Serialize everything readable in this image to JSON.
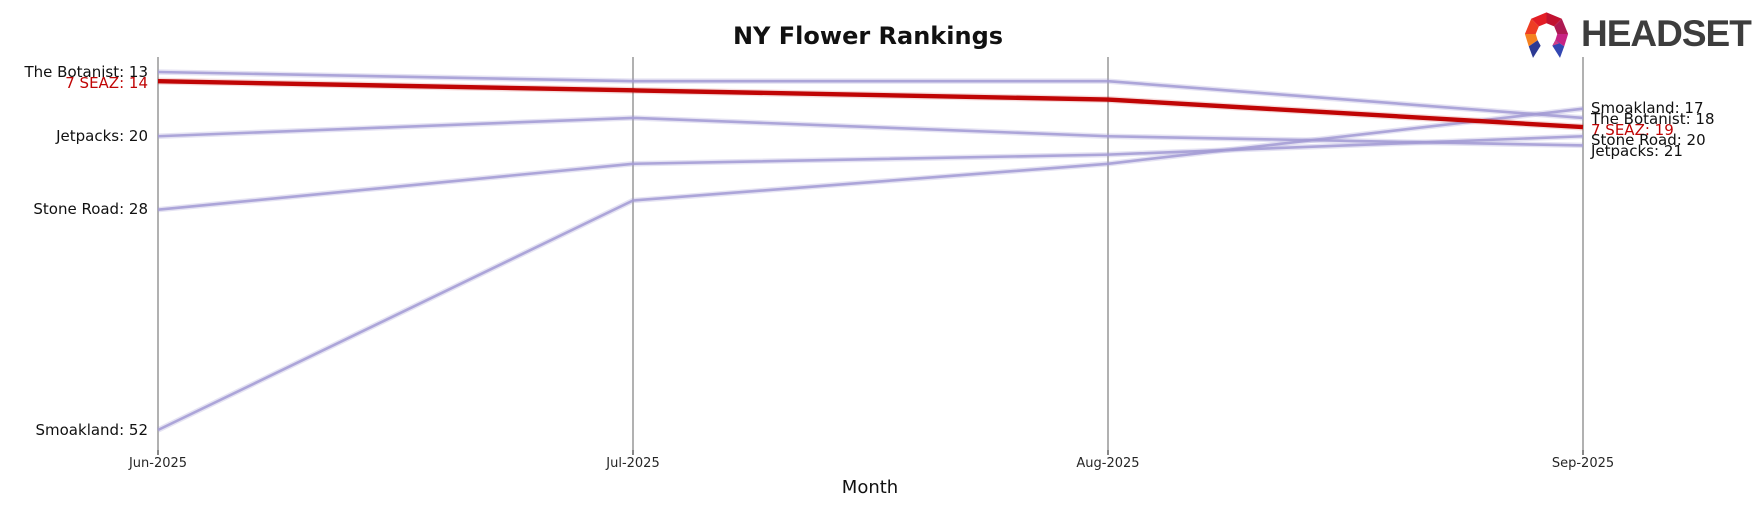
{
  "title": "NY Flower Rankings",
  "xlabel": "Month",
  "logo": {
    "text": "HEADSET",
    "text_color": "#3d3d3d",
    "icon_colors": [
      "#f58220",
      "#ee3d23",
      "#e31d25",
      "#c11230",
      "#ad1a52",
      "#c72384",
      "#2c3a94",
      "#3347b2",
      "#d23f88"
    ]
  },
  "colors": {
    "line_default": "#a29ad4",
    "line_highlight": "#c00505",
    "axis_line": "#b1b1b1",
    "tick_mark": "#555555",
    "label_text": "#111111",
    "highlight_label_text": "#c00505"
  },
  "chart_data": {
    "type": "line",
    "subtype": "bump-ranking-chart",
    "title": "NY Flower Rankings",
    "xlabel": "Month",
    "ylabel": "",
    "x": [
      "Jun-2025",
      "Jul-2025",
      "Aug-2025",
      "Sep-2025"
    ],
    "y_inverted": true,
    "ylim": [
      13,
      52
    ],
    "grid": "vertical-month-axes-only",
    "legend": "none (direct line labels at both ends)",
    "series": [
      {
        "name": "The Botanist",
        "values": [
          13,
          14,
          14,
          18
        ],
        "highlight": false,
        "left_label": "The Botanist: 13",
        "right_label": "The Botanist: 18"
      },
      {
        "name": "7 SEAZ",
        "values": [
          14,
          15,
          16,
          19
        ],
        "highlight": true,
        "left_label": "7 SEAZ: 14",
        "right_label": "7 SEAZ: 19"
      },
      {
        "name": "Jetpacks",
        "values": [
          20,
          18,
          20,
          21
        ],
        "highlight": false,
        "left_label": "Jetpacks: 20",
        "right_label": "Jetpacks: 21"
      },
      {
        "name": "Stone Road",
        "values": [
          28,
          23,
          22,
          20
        ],
        "highlight": false,
        "left_label": "Stone Road: 28",
        "right_label": "Stone Road: 20"
      },
      {
        "name": "Smoakland",
        "values": [
          52,
          27,
          23,
          17
        ],
        "highlight": false,
        "left_label": "Smoakland: 52",
        "right_label": "Smoakland: 17"
      }
    ]
  }
}
